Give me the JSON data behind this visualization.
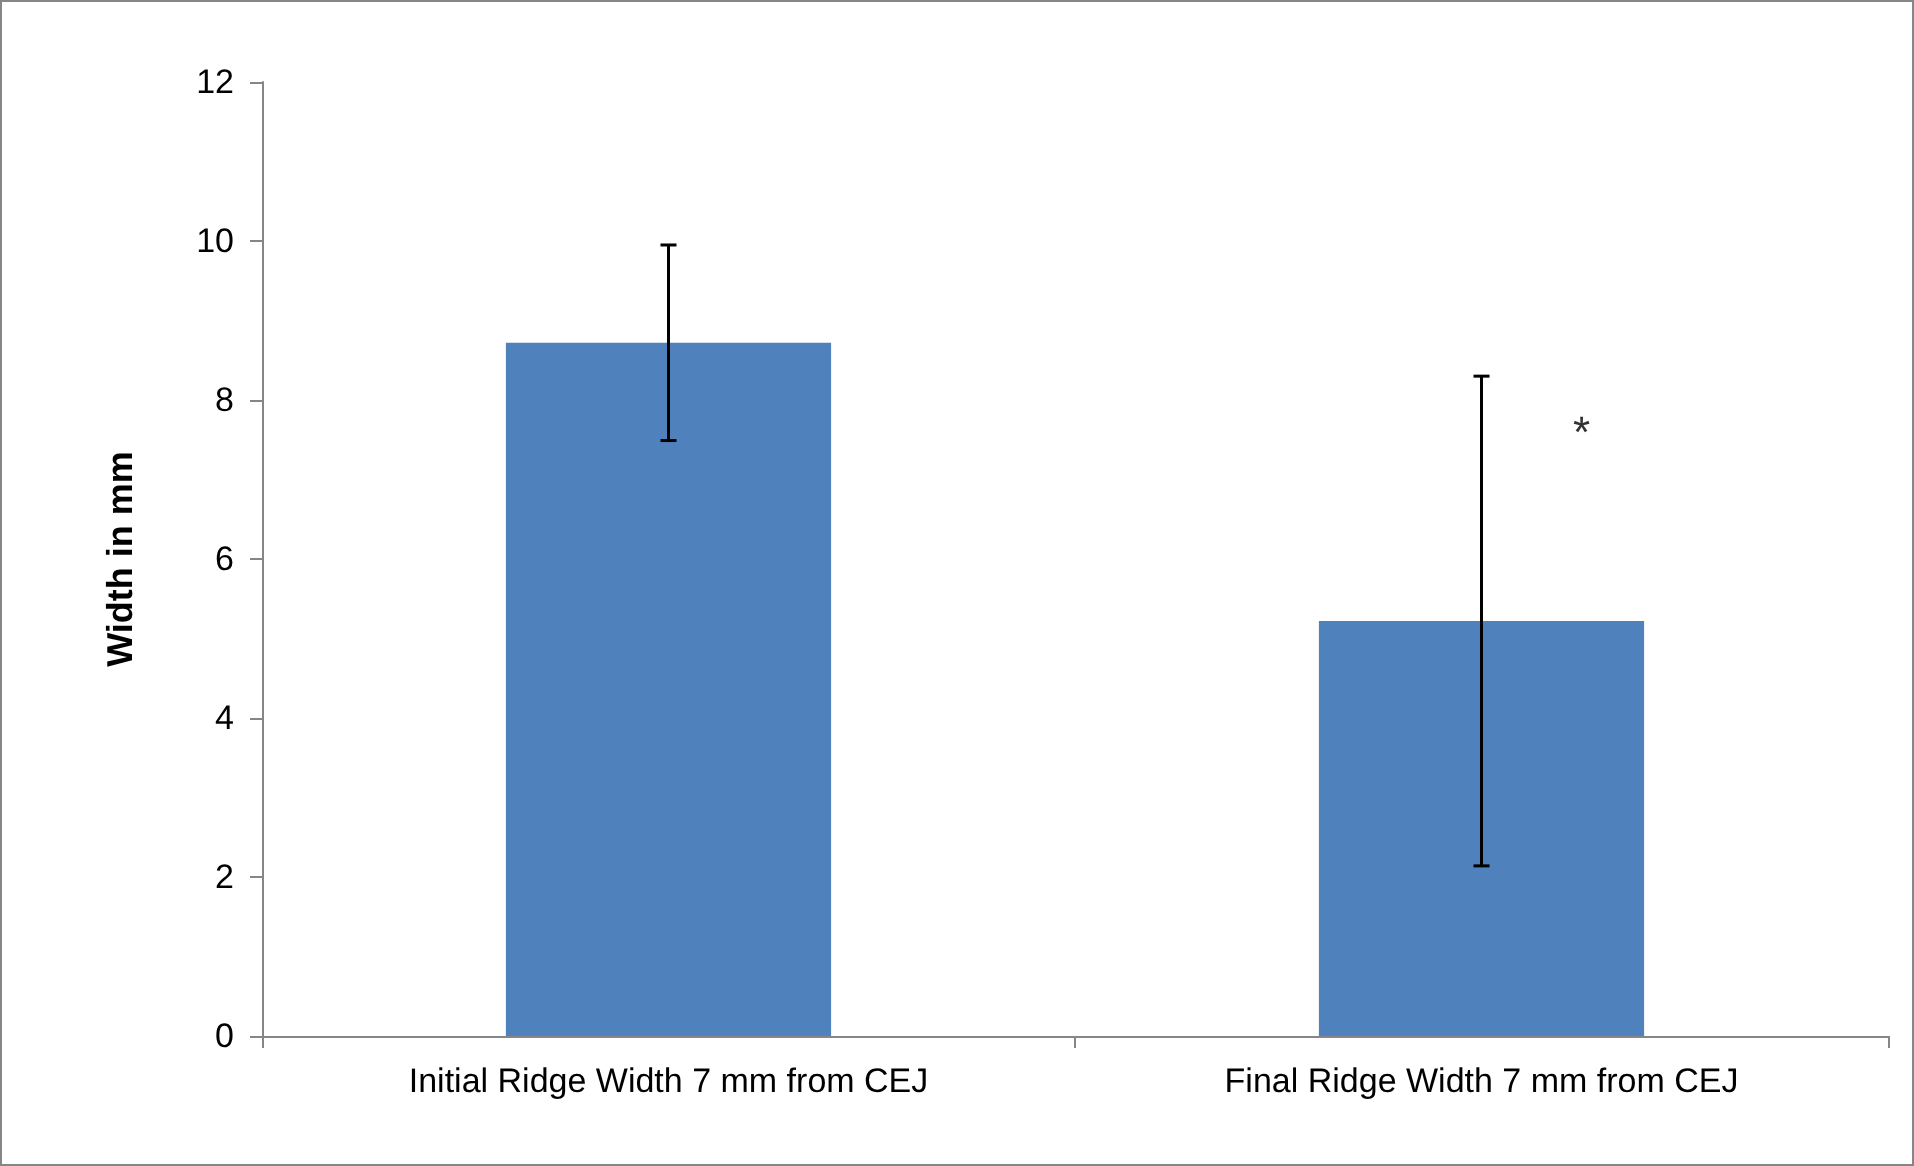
{
  "chart_data": {
    "type": "bar",
    "ylabel": "Width in mm",
    "categories": [
      "Initial Ridge Width 7 mm from CEJ",
      "Final Ridge Width 7 mm from CEJ"
    ],
    "values": [
      8.72,
      5.22
    ],
    "color": "#4f81bd",
    "errors": [
      1.23,
      3.08
    ],
    "ylim": [
      0,
      12
    ],
    "yticks": [
      0,
      2,
      4,
      6,
      8,
      10,
      12
    ],
    "grid": false,
    "annotations": [
      {
        "text": "*",
        "x": "Final Ridge Width 7 mm from CEJ",
        "y": 7.6
      }
    ]
  }
}
